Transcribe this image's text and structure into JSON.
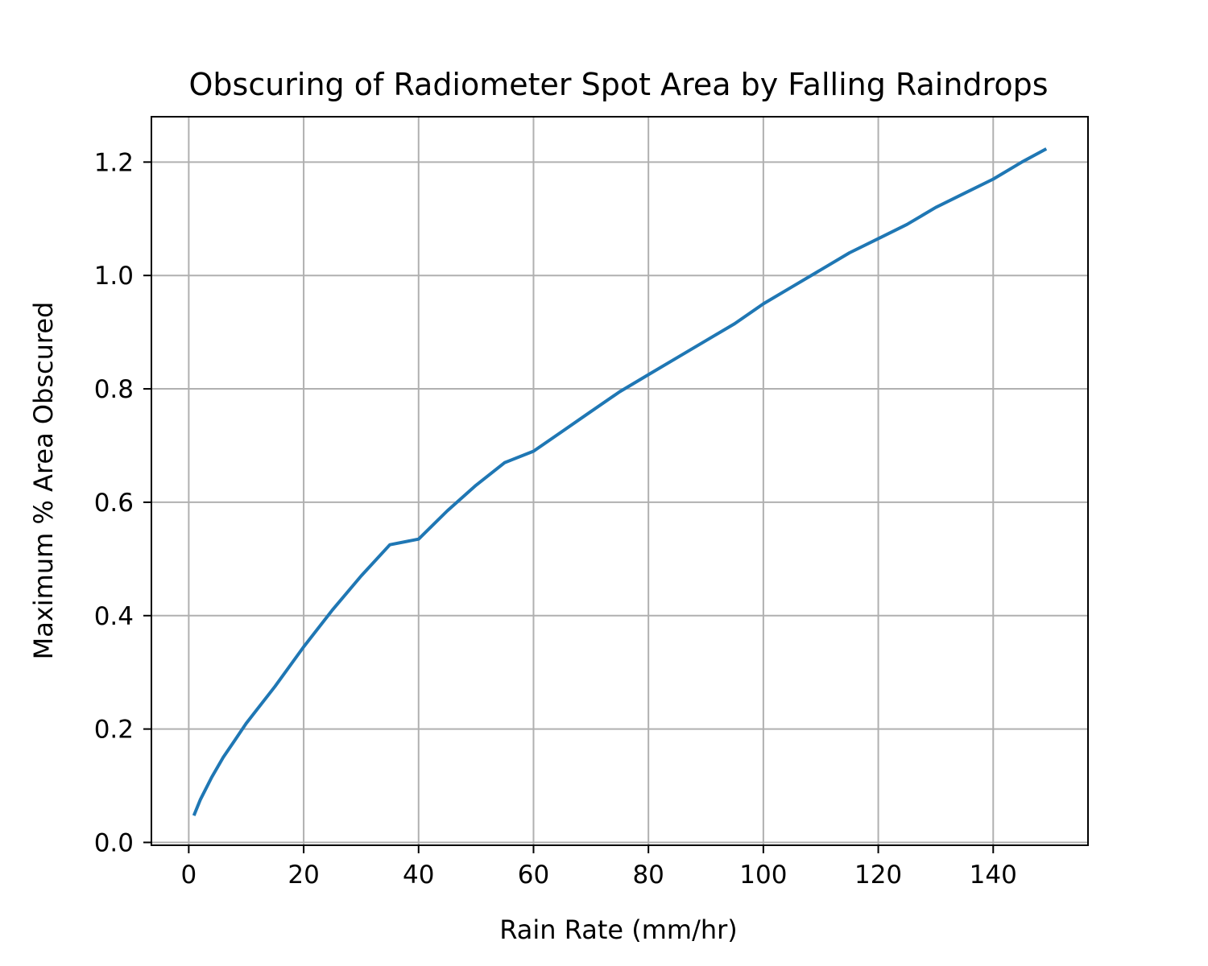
{
  "chart_data": {
    "type": "line",
    "title": "Obscuring of Radiometer Spot Area by Falling Raindrops",
    "xlabel": "Rain Rate (mm/hr)",
    "ylabel": "Maximum % Area Obscured",
    "xlim": [
      -6.5,
      156.5
    ],
    "ylim": [
      -0.005,
      1.28
    ],
    "xticks": [
      0,
      20,
      40,
      60,
      80,
      100,
      120,
      140
    ],
    "xtick_labels": [
      "0",
      "20",
      "40",
      "60",
      "80",
      "100",
      "120",
      "140"
    ],
    "yticks": [
      0.0,
      0.2,
      0.4,
      0.6,
      0.8,
      1.0,
      1.2
    ],
    "ytick_labels": [
      "0.0",
      "0.2",
      "0.4",
      "0.6",
      "0.8",
      "1.0",
      "1.2"
    ],
    "grid": true,
    "series": [
      {
        "color": "#1f77b4",
        "x": [
          1,
          2,
          4,
          6,
          8,
          10,
          15,
          20,
          25,
          30,
          35,
          40,
          45,
          50,
          55,
          60,
          65,
          70,
          75,
          80,
          85,
          90,
          95,
          100,
          105,
          110,
          115,
          120,
          125,
          130,
          135,
          140,
          145,
          149
        ],
        "y": [
          0.05,
          0.075,
          0.115,
          0.15,
          0.18,
          0.21,
          0.275,
          0.345,
          0.41,
          0.47,
          0.525,
          0.535,
          0.585,
          0.63,
          0.67,
          0.69,
          0.725,
          0.76,
          0.795,
          0.825,
          0.855,
          0.885,
          0.915,
          0.95,
          0.98,
          1.01,
          1.04,
          1.065,
          1.09,
          1.12,
          1.145,
          1.17,
          1.2,
          1.222
        ]
      }
    ]
  }
}
